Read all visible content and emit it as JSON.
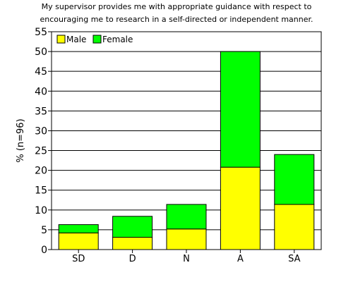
{
  "chart_data": {
    "type": "bar",
    "stacked": true,
    "title": [
      "My supervisor provides me with appropriate guidance with respect to",
      "encouraging me to research in a self-directed or independent manner."
    ],
    "xlabel": "",
    "ylabel": "% (n=96)",
    "ylim": [
      0,
      55
    ],
    "yticks": [
      0,
      5,
      10,
      15,
      20,
      25,
      30,
      35,
      40,
      45,
      50,
      55
    ],
    "grid": true,
    "legend_position": "top-left",
    "categories": [
      "SD",
      "D",
      "N",
      "A",
      "SA"
    ],
    "series": [
      {
        "name": "Male",
        "color": "#ffff00",
        "values": [
          4.2,
          3.1,
          5.2,
          20.8,
          11.4
        ]
      },
      {
        "name": "Female",
        "color": "#00ff00",
        "values": [
          2.1,
          5.3,
          6.2,
          29.2,
          12.6
        ]
      }
    ]
  }
}
